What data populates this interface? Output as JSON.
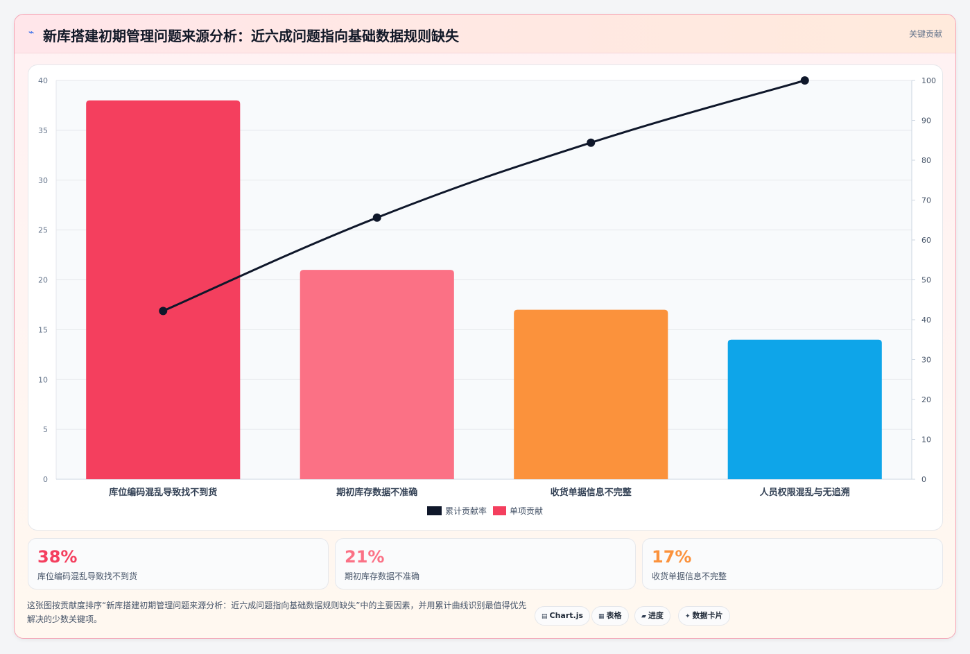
{
  "header": {
    "icon": "lightning-icon",
    "title": "新库搭建初期管理问题来源分析：近六成问题指向基础数据规则缺失",
    "badge": "关键贡献"
  },
  "chart_data": {
    "type": "bar",
    "categories": [
      "库位编码混乱导致找不到货",
      "期初库存数据不准确",
      "收货单据信息不完整",
      "人员权限混乱与无追溯"
    ],
    "series": [
      {
        "name": "单项贡献",
        "type": "bar",
        "values": [
          38,
          21,
          17,
          14
        ],
        "colors": [
          "#f43f5e",
          "#fb7185",
          "#fb923c",
          "#0ea5e9"
        ],
        "axis": "left"
      },
      {
        "name": "累计贡献率",
        "type": "line",
        "values": [
          42.2,
          65.6,
          84.4,
          100
        ],
        "color": "#0f172a",
        "axis": "right"
      }
    ],
    "ylim": [
      0,
      40
    ],
    "yticks": [
      0,
      5,
      10,
      15,
      20,
      25,
      30,
      35,
      40
    ],
    "y2lim": [
      0,
      100
    ],
    "y2ticks": [
      0,
      10,
      20,
      30,
      40,
      50,
      60,
      70,
      80,
      90,
      100
    ],
    "legend": {
      "position": "bottom",
      "items": [
        "累计贡献率",
        "单项贡献"
      ]
    },
    "grid": true
  },
  "stats": [
    {
      "value": "38%",
      "label": "库位编码混乱导致找不到货",
      "color": "#f43f5e"
    },
    {
      "value": "21%",
      "label": "期初库存数据不准确",
      "color": "#fb7185"
    },
    {
      "value": "17%",
      "label": "收货单据信息不完整",
      "color": "#fb923c"
    }
  ],
  "footnote": "这张图按贡献度排序“新库搭建初期管理问题来源分析：近六成问题指向基础数据规则缺失”中的主要因素，并用累计曲线识别最值得优先解决的少数关键项。",
  "tags": [
    {
      "icon": "▤",
      "label": "Chart.js"
    },
    {
      "icon": "▦",
      "label": "表格"
    },
    {
      "icon": "▰",
      "label": "进度"
    },
    {
      "icon": "✦",
      "label": "数据卡片"
    }
  ]
}
